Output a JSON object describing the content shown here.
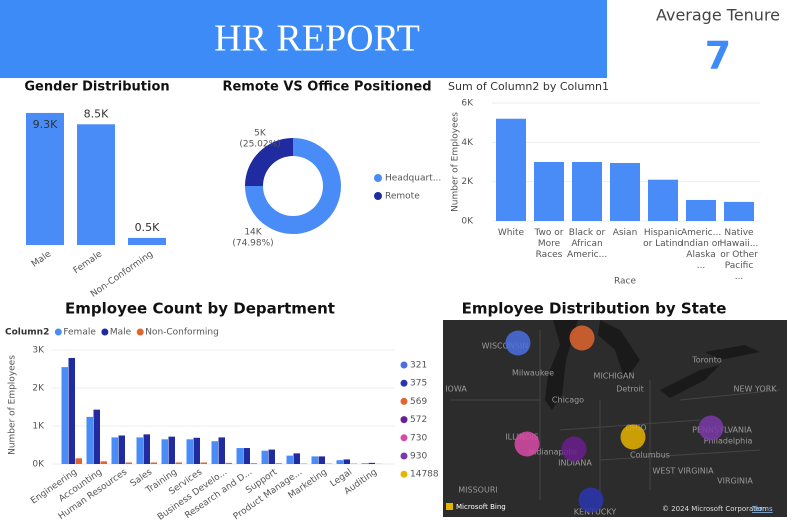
{
  "header": {
    "title": "HR REPORT"
  },
  "card": {
    "label": "Average Tenure",
    "value": 7
  },
  "chart_data": [
    {
      "type": "bar",
      "title": "Gender Distribution",
      "categories": [
        "Male",
        "Female",
        "Non-Conforming"
      ],
      "values": [
        9300,
        8500,
        500
      ],
      "value_labels": [
        "9.3K",
        "8.5K",
        "0.5K"
      ],
      "color": "#4a8cf7"
    },
    {
      "type": "pie",
      "title": "Remote VS Office Positioned",
      "donut": true,
      "categories": [
        "Headquart...",
        "Remote"
      ],
      "values": [
        74.98,
        25.02
      ],
      "count_labels": [
        "14K",
        "5K"
      ],
      "percent_labels": [
        "(74.98%)",
        "(25.02%)"
      ],
      "colors": [
        "#4a8cf7",
        "#1f2b9f"
      ]
    },
    {
      "type": "bar",
      "title": "Sum of Column2 by Column1",
      "x_label": "Race",
      "y_label": "Number of Employees",
      "categories": [
        "White",
        "Two or More Races",
        "Black or African Americ...",
        "Asian",
        "Hispanic or Latino",
        "Americ... Indian or Alaska ...",
        "Native Hawaii... or Other Pacific ..."
      ],
      "values": [
        5200,
        3000,
        3000,
        2950,
        2100,
        1070,
        970
      ],
      "color": "#4a8cf7",
      "ylim": [
        0,
        6000
      ],
      "yticks": [
        {
          "value": 0,
          "label": "0K"
        },
        {
          "value": 2000,
          "label": "2K"
        },
        {
          "value": 4000,
          "label": "4K"
        },
        {
          "value": 6000,
          "label": "6K"
        }
      ]
    },
    {
      "type": "bar",
      "title": "Employee Count by Department",
      "y_label": "Number of Employees",
      "legend_title": "Column2",
      "categories": [
        "Engineering",
        "Accounting",
        "Human Resources",
        "Sales",
        "Training",
        "Services",
        "Business Develo...",
        "Research and D...",
        "Support",
        "Product Manage...",
        "Marketing",
        "Legal",
        "Auditing"
      ],
      "series": [
        {
          "name": "Female",
          "color": "#4a8cf7",
          "values": [
            2550,
            1240,
            700,
            700,
            650,
            650,
            600,
            420,
            350,
            220,
            200,
            100,
            20
          ]
        },
        {
          "name": "Male",
          "color": "#1f2b9f",
          "values": [
            2790,
            1430,
            750,
            780,
            720,
            690,
            700,
            420,
            380,
            280,
            200,
            120,
            30
          ]
        },
        {
          "name": "Non-Conforming",
          "color": "#e0652e",
          "values": [
            150,
            70,
            40,
            40,
            40,
            40,
            30,
            20,
            20,
            10,
            10,
            10,
            5
          ]
        }
      ],
      "ylim": [
        0,
        3000
      ],
      "yticks": [
        {
          "value": 0,
          "label": "0K"
        },
        {
          "value": 1000,
          "label": "1K"
        },
        {
          "value": 2000,
          "label": "2K"
        },
        {
          "value": 3000,
          "label": "3K"
        }
      ]
    }
  ],
  "map": {
    "title": "Employee Distribution by State",
    "legend": [
      {
        "label": 321,
        "color": "#4a6fe0"
      },
      {
        "label": 375,
        "color": "#2b35b0"
      },
      {
        "label": 569,
        "color": "#e0652e"
      },
      {
        "label": 572,
        "color": "#6b1f8f"
      },
      {
        "label": 730,
        "color": "#d94aa8"
      },
      {
        "label": 930,
        "color": "#7a3aa8"
      },
      {
        "label": 14788,
        "color": "#e6b400"
      }
    ],
    "labels": [
      "WISCONSIN",
      "MICHIGAN",
      "Milwaukee",
      "Chicago",
      "Detroit",
      "Toronto",
      "IOWA",
      "NEW YORK",
      "ILLINOIS",
      "Indianapolis",
      "INDIANA",
      "OHIO",
      "Columbus",
      "PENNSYLVANIA",
      "Philadelphia",
      "WEST VIRGINIA",
      "VIRGINIA",
      "MISSOURI",
      "KENTUCKY"
    ],
    "logo": "Microsoft Bing",
    "attribution": "© 2024 Microsoft Corporation",
    "terms": "Terms"
  }
}
